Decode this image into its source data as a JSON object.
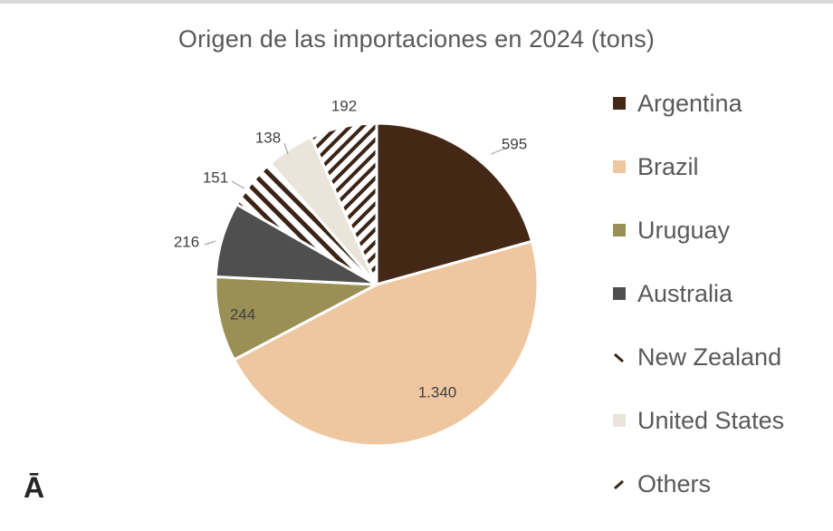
{
  "chart_data": {
    "type": "pie",
    "title": "Origen de las importaciones en 2024 (tons)",
    "categories": [
      "Argentina",
      "Brazil",
      "Uruguay",
      "Australia",
      "New Zealand",
      "United States",
      "Others"
    ],
    "values": [
      595,
      1340,
      244,
      216,
      151,
      138,
      192
    ],
    "data_labels": [
      "595",
      "1.340",
      "244",
      "216",
      "151",
      "138",
      "192"
    ],
    "colors": [
      "#442816",
      "#eec7a1",
      "#9a9055",
      "#4f4f4f",
      "#3a2416",
      "#e9e5da",
      "#3a2416"
    ],
    "fills": [
      "solid",
      "solid",
      "solid",
      "solid",
      "hatch-wide",
      "solid",
      "hatch-dense"
    ],
    "legend_position": "right",
    "start_angle_deg": 0,
    "direction": "clockwise"
  },
  "corner_mark": "Ā"
}
